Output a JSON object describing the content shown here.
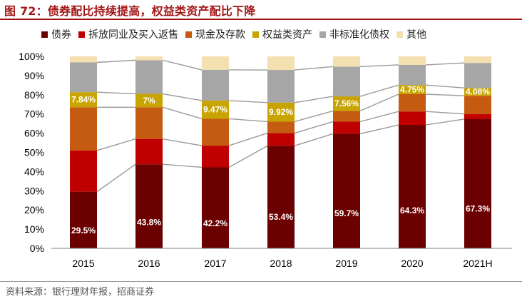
{
  "header": {
    "title": "图 72：债券配比持续提高，权益类资产配比下降"
  },
  "footer": {
    "source": "资料来源：银行理财年报，招商证券"
  },
  "chart_data": {
    "type": "bar",
    "stacked": true,
    "percent": true,
    "categories": [
      "2015",
      "2016",
      "2017",
      "2018",
      "2019",
      "2020",
      "2021H"
    ],
    "ylim": [
      0,
      100
    ],
    "yticks": [
      "0%",
      "10%",
      "20%",
      "30%",
      "40%",
      "50%",
      "60%",
      "70%",
      "80%",
      "90%",
      "100%"
    ],
    "legend_position": "top",
    "series": [
      {
        "name": "债券",
        "color": "#6b0000",
        "label_color": "#ffffff",
        "values": [
          29.5,
          43.8,
          42.2,
          53.4,
          59.7,
          64.3,
          67.3
        ],
        "labels": [
          "29.5%",
          "43.8%",
          "42.2%",
          "53.4%",
          "59.7%",
          "64.3%",
          "67.3%"
        ]
      },
      {
        "name": "拆放同业及买入返售",
        "color": "#c00000",
        "label_color": "#ffffff",
        "values": [
          21.5,
          13.2,
          11.3,
          6.6,
          6.3,
          7.0,
          2.7
        ],
        "labels": [
          "",
          "",
          "",
          "",
          "",
          "",
          ""
        ]
      },
      {
        "name": "现金及存款",
        "color": "#c55a11",
        "label_color": "#ffffff",
        "values": [
          22.5,
          16.5,
          14.0,
          6.0,
          5.6,
          9.0,
          9.5
        ],
        "labels": [
          "",
          "",
          "",
          "",
          "",
          "",
          ""
        ]
      },
      {
        "name": "权益类资产",
        "color": "#c8a400",
        "label_color": "#ffffff",
        "values": [
          7.84,
          7.0,
          9.47,
          9.92,
          7.56,
          4.75,
          4.08
        ],
        "labels": [
          "7.84%",
          "7%",
          "9.47%",
          "9.92%",
          "7.56%",
          "4.75%",
          "4.08%"
        ]
      },
      {
        "name": "非标准化债权",
        "color": "#a6a6a6",
        "label_color": "#ffffff",
        "values": [
          15.5,
          17.5,
          16.0,
          17.0,
          15.5,
          10.5,
          13.0
        ],
        "labels": [
          "",
          "",
          "",
          "",
          "",
          "",
          ""
        ]
      },
      {
        "name": "其他",
        "color": "#f3dfb0",
        "label_color": "#000000",
        "values": [
          3.16,
          2.0,
          7.03,
          7.08,
          5.34,
          4.45,
          3.42
        ],
        "labels": [
          "",
          "",
          "",
          "",
          "",
          "",
          ""
        ]
      }
    ]
  }
}
